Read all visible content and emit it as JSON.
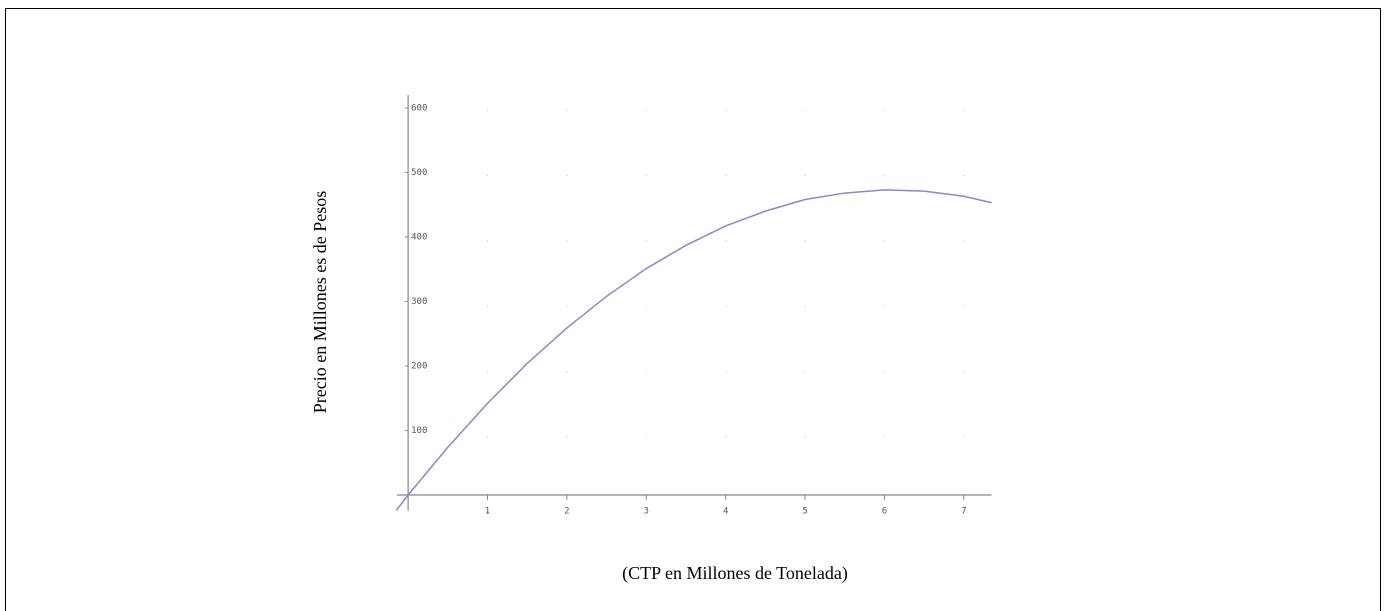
{
  "chart_data": {
    "type": "line",
    "xlabel": "(CTP en Millones de Tonelada)",
    "ylabel": "Precio en Millones es de Pesos",
    "x": [
      -0.15,
      0,
      0.5,
      1,
      1.5,
      2,
      2.5,
      3,
      3.5,
      4,
      4.5,
      5,
      5.5,
      6,
      6.5,
      7,
      7.35
    ],
    "series": [
      {
        "color": "#8888cc",
        "values": [
          -24,
          0,
          74,
          142,
          204,
          259,
          308,
          351,
          387,
          417,
          440,
          458,
          468,
          473,
          471,
          463,
          453
        ]
      }
    ],
    "xlim": [
      -0.14,
      7.35
    ],
    "ylim": [
      -24,
      620
    ],
    "xticks": [
      1,
      2,
      3,
      4,
      5,
      6,
      7
    ],
    "yticks": [
      100,
      200,
      300,
      400,
      500,
      600
    ],
    "grid": true
  }
}
